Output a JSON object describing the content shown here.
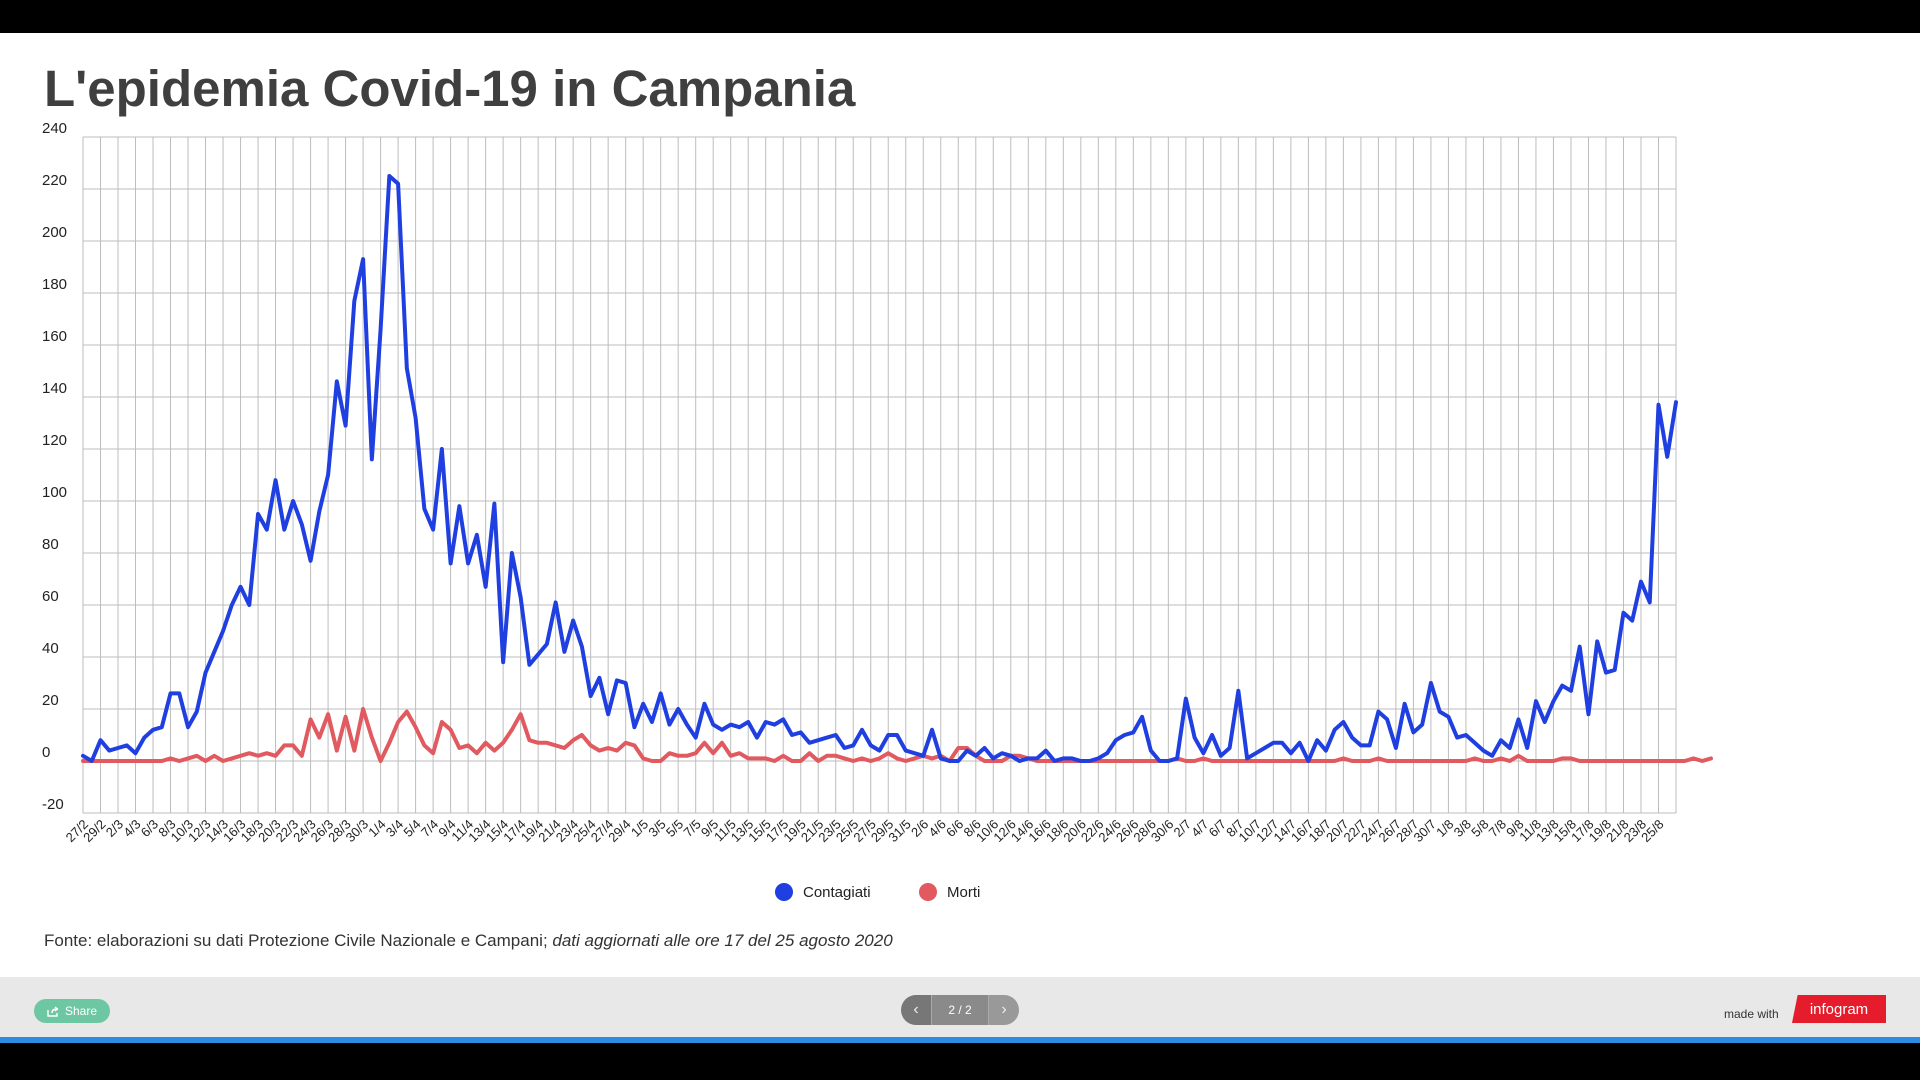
{
  "title": "L'epidemia Covid-19 in Campania",
  "source": {
    "prefix": "Fonte: elaborazioni su dati Protezione Civile Nazionale e Campani; ",
    "italic": "dati aggiornati alle ore 17 del 25 agosto 2020"
  },
  "footer": {
    "share_label": "Share",
    "page_indicator": "2 / 2",
    "made_with": "made with",
    "brand": "infogram"
  },
  "colors": {
    "contagiati": "#1f3fe0",
    "morti": "#e05a5f",
    "grid": "#bdbdbd",
    "title": "#3f3f3f"
  },
  "icons": {
    "share": "share-icon",
    "prev": "chevron-left-icon",
    "next": "chevron-right-icon"
  },
  "chart_data": {
    "type": "line",
    "title": "L'epidemia Covid-19 in Campania",
    "xlabel": "",
    "ylabel": "",
    "ylim": [
      -20,
      240
    ],
    "yticks": [
      -20,
      0,
      20,
      40,
      60,
      80,
      100,
      120,
      140,
      160,
      180,
      200,
      220,
      240
    ],
    "grid": true,
    "legend_position": "bottom",
    "x_tick_labels": [
      "27/2",
      "29/2",
      "2/3",
      "4/3",
      "6/3",
      "8/3",
      "10/3",
      "12/3",
      "14/3",
      "16/3",
      "18/3",
      "20/3",
      "22/3",
      "24/3",
      "26/3",
      "28/3",
      "30/3",
      "1/4",
      "3/4",
      "5/4",
      "7/4",
      "9/4",
      "11/4",
      "13/4",
      "15/4",
      "17/4",
      "19/4",
      "21/4",
      "23/4",
      "25/4",
      "27/4",
      "29/4",
      "1/5",
      "3/5",
      "5/5",
      "7/5",
      "9/5",
      "11/5",
      "13/5",
      "15/5",
      "17/5",
      "19/5",
      "21/5",
      "23/5",
      "25/5",
      "27/5",
      "29/5",
      "31/5",
      "2/6",
      "4/6",
      "6/6",
      "8/6",
      "10/6",
      "12/6",
      "14/6",
      "16/6",
      "18/6",
      "20/6",
      "22/6",
      "24/6",
      "26/6",
      "28/6",
      "30/6",
      "2/7",
      "4/7",
      "6/7",
      "8/7",
      "10/7",
      "12/7",
      "14/7",
      "16/7",
      "18/7",
      "20/7",
      "22/7",
      "24/7",
      "26/7",
      "28/7",
      "30/7",
      "1/8",
      "3/8",
      "5/8",
      "7/8",
      "9/8",
      "11/8",
      "13/8",
      "15/8",
      "17/8",
      "19/8",
      "21/8",
      "23/8",
      "25/8"
    ],
    "series": [
      {
        "name": "Contagiati",
        "color": "#1f3fe0",
        "values": [
          2,
          0,
          8,
          4,
          5,
          6,
          3,
          9,
          12,
          13,
          26,
          26,
          13,
          19,
          34,
          42,
          50,
          60,
          67,
          60,
          95,
          89,
          108,
          89,
          100,
          91,
          77,
          96,
          110,
          146,
          129,
          177,
          193,
          116,
          166,
          225,
          222,
          151,
          132,
          97,
          89,
          120,
          76,
          98,
          76,
          87,
          67,
          99,
          38,
          80,
          63,
          37,
          41,
          45,
          61,
          42,
          54,
          44,
          25,
          32,
          18,
          31,
          30,
          13,
          22,
          15,
          26,
          14,
          20,
          14,
          9,
          22,
          14,
          12,
          14,
          13,
          15,
          9,
          15,
          14,
          16,
          10,
          11,
          7,
          8,
          9,
          10,
          5,
          6,
          12,
          6,
          4,
          10,
          10,
          4,
          3,
          2,
          12,
          1,
          0,
          0,
          4,
          2,
          5,
          1,
          3,
          2,
          0,
          1,
          1,
          4,
          0,
          1,
          1,
          0,
          0,
          1,
          3,
          8,
          10,
          11,
          17,
          4,
          0,
          0,
          1,
          24,
          9,
          3,
          10,
          2,
          5,
          27,
          1,
          3,
          5,
          7,
          7,
          3,
          7,
          0,
          8,
          4,
          12,
          15,
          9,
          6,
          6,
          19,
          16,
          5,
          22,
          11,
          14,
          30,
          19,
          17,
          9,
          10,
          7,
          4,
          2,
          8,
          5,
          16,
          5,
          23,
          15,
          23,
          29,
          27,
          44,
          18,
          46,
          34,
          35,
          57,
          54,
          69,
          61,
          137,
          117,
          138
        ]
      },
      {
        "name": "Morti",
        "color": "#e05a5f",
        "values": [
          0,
          0,
          0,
          0,
          0,
          0,
          0,
          0,
          0,
          0,
          1,
          0,
          1,
          2,
          0,
          2,
          0,
          1,
          2,
          3,
          2,
          3,
          2,
          6,
          6,
          2,
          16,
          9,
          18,
          4,
          17,
          4,
          20,
          9,
          0,
          7,
          15,
          19,
          13,
          6,
          3,
          15,
          12,
          5,
          6,
          3,
          7,
          4,
          7,
          12,
          18,
          8,
          7,
          7,
          6,
          5,
          8,
          10,
          6,
          4,
          5,
          4,
          7,
          6,
          1,
          0,
          0,
          3,
          2,
          2,
          3,
          7,
          3,
          7,
          2,
          3,
          1,
          1,
          1,
          0,
          2,
          0,
          0,
          3,
          0,
          2,
          2,
          1,
          0,
          1,
          0,
          1,
          3,
          1,
          0,
          1,
          2,
          1,
          2,
          0,
          5,
          5,
          2,
          0,
          0,
          0,
          2,
          2,
          1,
          0,
          0,
          0,
          0,
          0,
          0,
          0,
          0,
          0,
          0,
          0,
          0,
          0,
          0,
          0,
          0,
          1,
          0,
          0,
          1,
          0,
          0,
          0,
          0,
          0,
          0,
          0,
          0,
          0,
          0,
          0,
          0,
          0,
          0,
          0,
          1,
          0,
          0,
          0,
          1,
          0,
          0,
          0,
          0,
          0,
          0,
          0,
          0,
          0,
          0,
          1,
          0,
          0,
          1,
          0,
          2,
          0,
          0,
          0,
          0,
          1,
          1,
          0,
          0,
          0,
          0,
          0,
          0,
          0,
          0,
          0,
          0,
          0,
          0,
          0,
          1,
          0,
          1
        ]
      }
    ]
  }
}
